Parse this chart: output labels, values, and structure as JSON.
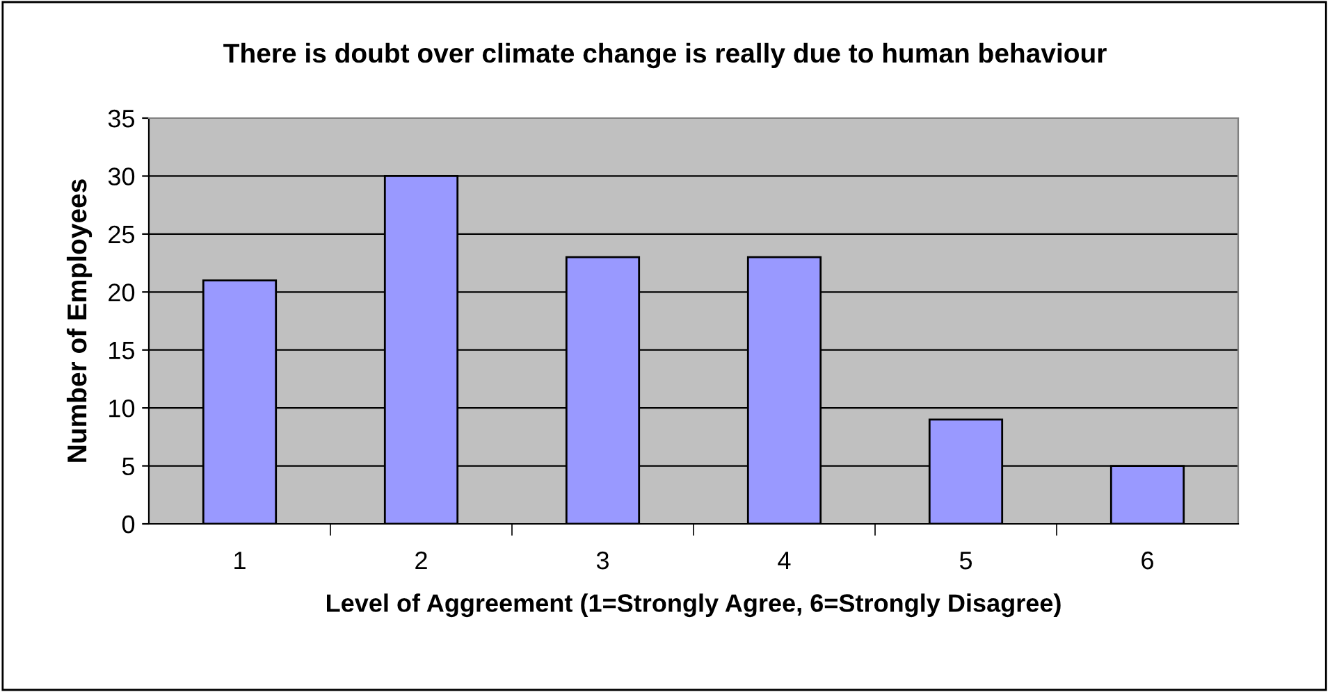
{
  "chart_data": {
    "type": "bar",
    "title": "There is doubt over climate change is really due to human behaviour",
    "xlabel": "Level of Aggreement (1=Strongly Agree, 6=Strongly Disagree)",
    "ylabel": "Number of Employees",
    "categories": [
      "1",
      "2",
      "3",
      "4",
      "5",
      "6"
    ],
    "values": [
      21,
      30,
      23,
      23,
      9,
      5
    ],
    "color": "#9999ff",
    "ylim": [
      0,
      35
    ],
    "yticks": [
      0,
      5,
      10,
      15,
      20,
      25,
      30,
      35
    ],
    "grid": "y",
    "legend": false
  }
}
